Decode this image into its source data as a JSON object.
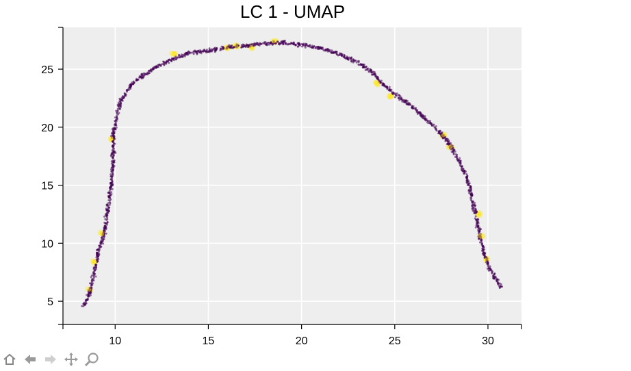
{
  "chart_data": {
    "type": "scatter",
    "title": "LC 1 - UMAP",
    "xlabel": "",
    "ylabel": "",
    "xlim": [
      7.2,
      31.8
    ],
    "ylim": [
      3.0,
      28.6
    ],
    "xticks": [
      10,
      15,
      20,
      25,
      30
    ],
    "yticks": [
      5,
      10,
      15,
      20,
      25
    ],
    "grid": true,
    "background": "#eeeeee",
    "colors": {
      "low": "#440154",
      "high": "#fde725"
    },
    "curve": [
      [
        8.3,
        4.5
      ],
      [
        8.6,
        5.6
      ],
      [
        8.9,
        7.5
      ],
      [
        9.1,
        9.4
      ],
      [
        9.4,
        10.8
      ],
      [
        9.6,
        12.8
      ],
      [
        9.8,
        15.0
      ],
      [
        9.9,
        17.2
      ],
      [
        9.9,
        19.2
      ],
      [
        10.1,
        21.2
      ],
      [
        10.4,
        22.6
      ],
      [
        11.0,
        23.9
      ],
      [
        12.0,
        25.0
      ],
      [
        13.0,
        25.8
      ],
      [
        14.0,
        26.4
      ],
      [
        15.2,
        26.6
      ],
      [
        16.0,
        26.9
      ],
      [
        17.0,
        27.0
      ],
      [
        18.0,
        27.2
      ],
      [
        19.0,
        27.3
      ],
      [
        20.0,
        27.1
      ],
      [
        21.0,
        26.8
      ],
      [
        22.0,
        26.3
      ],
      [
        23.0,
        25.6
      ],
      [
        23.8,
        24.7
      ],
      [
        24.3,
        23.8
      ],
      [
        25.0,
        22.8
      ],
      [
        26.0,
        21.7
      ],
      [
        27.0,
        20.2
      ],
      [
        27.8,
        18.9
      ],
      [
        28.4,
        17.3
      ],
      [
        28.9,
        15.5
      ],
      [
        29.2,
        13.6
      ],
      [
        29.4,
        12.0
      ],
      [
        29.6,
        10.3
      ],
      [
        29.8,
        9.0
      ],
      [
        30.1,
        7.8
      ],
      [
        30.4,
        7.0
      ],
      [
        30.7,
        6.2
      ]
    ],
    "highlights": [
      [
        8.6,
        6.0
      ],
      [
        8.9,
        8.4
      ],
      [
        9.3,
        10.8
      ],
      [
        9.8,
        19.0
      ],
      [
        13.2,
        26.3
      ],
      [
        16.0,
        26.8
      ],
      [
        16.5,
        27.0
      ],
      [
        17.3,
        26.9
      ],
      [
        18.5,
        27.4
      ],
      [
        24.1,
        23.8
      ],
      [
        24.8,
        22.6
      ],
      [
        27.6,
        19.3
      ],
      [
        28.0,
        18.3
      ],
      [
        29.5,
        12.5
      ],
      [
        29.6,
        10.6
      ],
      [
        29.9,
        8.6
      ]
    ]
  },
  "toolbar": {
    "tools": [
      {
        "name": "home-icon"
      },
      {
        "name": "back-icon"
      },
      {
        "name": "forward-icon"
      },
      {
        "name": "pan-icon"
      },
      {
        "name": "zoom-icon"
      }
    ]
  }
}
